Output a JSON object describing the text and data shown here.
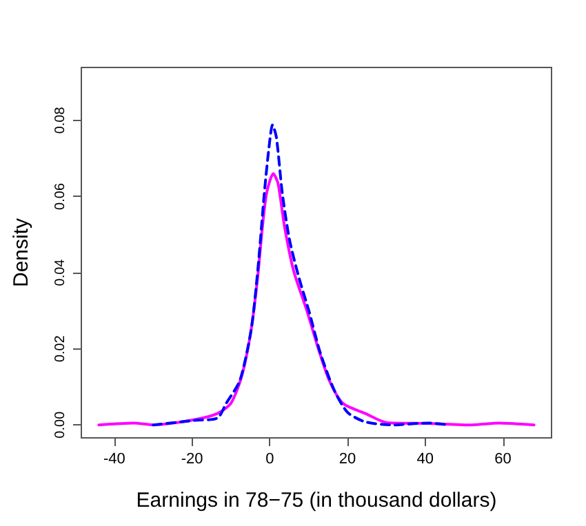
{
  "chart_data": {
    "type": "line",
    "xlabel": "Earnings in 78−75 (in thousand dollars)",
    "ylabel": "Density",
    "xlim": [
      -48.5,
      72.5
    ],
    "xticks": [
      -40,
      -20,
      0,
      20,
      40,
      60
    ],
    "ylim": [
      -0.0034,
      0.0939
    ],
    "yticks": [
      {
        "value": 0,
        "label": "0.00"
      },
      {
        "value": 0.02,
        "label": "0.02"
      },
      {
        "value": 0.04,
        "label": "0.04"
      },
      {
        "value": 0.06,
        "label": "0.06"
      },
      {
        "value": 0.08,
        "label": "0.08"
      }
    ],
    "grid": false,
    "marker": "none",
    "series": [
      {
        "color": "#ff00ff",
        "line_style": "solid",
        "x": [
          -44,
          -35,
          -30,
          -19.3,
          -13.5,
          -10,
          -7.2,
          -4.8,
          -3.1,
          -2,
          -0.8,
          0.9,
          2.1,
          3.8,
          6.1,
          9.6,
          12.5,
          15.3,
          18.8,
          24.6,
          30.3,
          40.7,
          52,
          59,
          68
        ],
        "values": [
          0,
          0.0005,
          0,
          0.0014,
          0.003,
          0.0057,
          0.0129,
          0.025,
          0.039,
          0.051,
          0.061,
          0.066,
          0.0635,
          0.052,
          0.0406,
          0.0298,
          0.02,
          0.0117,
          0.0057,
          0.003,
          0.0006,
          0.0004,
          0,
          0.0005,
          0
        ]
      },
      {
        "color": "#0000ff",
        "line_style": "dashed",
        "x": [
          -30,
          -19.3,
          -13.5,
          -11.2,
          -7.7,
          -4.8,
          -3.1,
          -1.4,
          -0.2,
          0.7,
          1.7,
          3.2,
          5,
          7.3,
          10.1,
          13,
          16.5,
          20,
          24.6,
          31.5,
          40.7,
          45.9
        ],
        "values": [
          0,
          0.0012,
          0.0018,
          0.0057,
          0.0117,
          0.025,
          0.0406,
          0.061,
          0.073,
          0.0788,
          0.0755,
          0.061,
          0.049,
          0.0394,
          0.0298,
          0.0189,
          0.0093,
          0.0033,
          0.0008,
          0,
          0.0005,
          0
        ]
      }
    ]
  }
}
